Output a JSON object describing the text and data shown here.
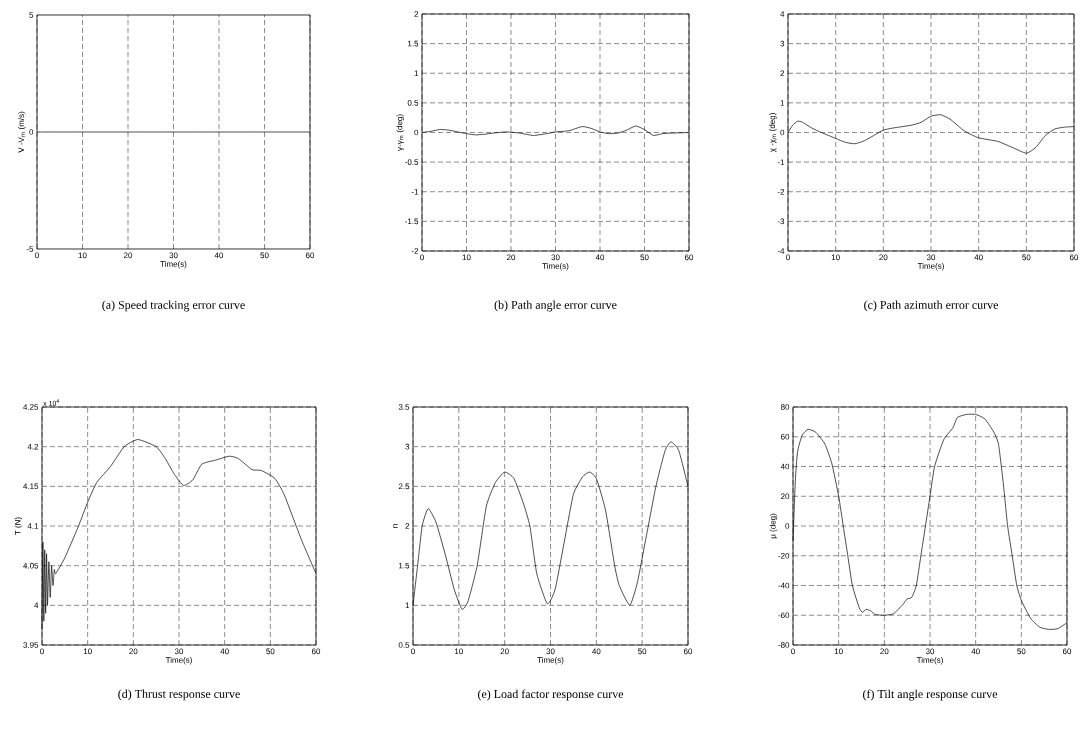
{
  "chart_data": [
    {
      "type": "line",
      "xlabel": "Time(s)",
      "ylabel": "V -V$_{m}$ (m/s)",
      "annotations": [
        "(a) Speed tracking error curve"
      ],
      "xlim": [
        0,
        60
      ],
      "ylim": [
        -5,
        5
      ],
      "xticks": [
        0,
        10,
        20,
        30,
        40,
        50,
        60
      ],
      "yticks": [
        -5,
        0,
        5
      ],
      "grid": "x",
      "color": "#000000",
      "x": [
        0,
        10,
        20,
        30,
        40,
        50,
        60
      ],
      "values": [
        0,
        0,
        0,
        0,
        0,
        0,
        0
      ]
    },
    {
      "type": "line",
      "xlabel": "Time(s)",
      "ylabel": "γ-γ$_{m}$ (deg)",
      "annotations": [
        "(b) Path angle error curve"
      ],
      "xlim": [
        0,
        60
      ],
      "ylim": [
        -2,
        2
      ],
      "xticks": [
        0,
        10,
        20,
        30,
        40,
        50,
        60
      ],
      "yticks": [
        -2,
        -1.5,
        -1,
        -0.5,
        0,
        0.5,
        1,
        1.5,
        2
      ],
      "grid": true,
      "color": "#000000",
      "x": [
        0,
        2,
        4,
        6,
        8,
        10,
        12,
        14,
        16,
        19,
        22,
        25,
        28,
        30,
        33,
        36,
        38,
        40,
        42,
        44,
        46,
        48,
        50,
        52,
        54,
        56,
        60
      ],
      "values": [
        0,
        0.02,
        0.05,
        0.04,
        0.01,
        -0.02,
        -0.04,
        -0.03,
        -0.01,
        0.01,
        -0.01,
        -0.05,
        -0.02,
        0.01,
        0.03,
        0.1,
        0.07,
        0.01,
        -0.02,
        -0.01,
        0.04,
        0.11,
        0.05,
        -0.05,
        -0.02,
        -0.01,
        0
      ]
    },
    {
      "type": "line",
      "xlabel": "Time(s)",
      "ylabel": "χ -χ$_{m}$ (deg)",
      "annotations": [
        "(c) Path azimuth error curve"
      ],
      "xlim": [
        0,
        60
      ],
      "ylim": [
        -4,
        4
      ],
      "xticks": [
        0,
        10,
        20,
        30,
        40,
        50,
        60
      ],
      "yticks": [
        -4,
        -3,
        -2,
        -1,
        0,
        1,
        2,
        3,
        4
      ],
      "grid": true,
      "color": "#000000",
      "x": [
        0,
        1,
        2,
        3,
        5,
        7,
        10,
        12,
        14,
        16,
        18,
        20,
        22,
        26,
        28,
        30,
        32,
        34,
        37,
        40,
        44,
        47,
        50,
        52,
        54,
        56,
        58,
        60
      ],
      "values": [
        0,
        0.25,
        0.38,
        0.35,
        0.15,
        0,
        -0.2,
        -0.33,
        -0.38,
        -0.28,
        -0.1,
        0.08,
        0.15,
        0.25,
        0.35,
        0.55,
        0.6,
        0.45,
        0.05,
        -0.18,
        -0.3,
        -0.5,
        -0.7,
        -0.5,
        -0.1,
        0.12,
        0.18,
        0.2
      ]
    },
    {
      "type": "line",
      "xlabel": "Time(s)",
      "ylabel": "T (N)",
      "annotations": [
        "(d) Thrust response curve",
        "x 10$^{4}$"
      ],
      "xlim": [
        0,
        60
      ],
      "ylim": [
        3.95,
        4.25
      ],
      "xticks": [
        0,
        10,
        20,
        30,
        40,
        50,
        60
      ],
      "yticks": [
        3.95,
        4,
        4.05,
        4.1,
        4.15,
        4.2,
        4.25
      ],
      "grid": true,
      "color": "#000000",
      "x": [
        0,
        0.2,
        0.4,
        0.6,
        0.8,
        1.0,
        1.2,
        1.5,
        1.8,
        2.1,
        2.4,
        2.7,
        3,
        5,
        8,
        10,
        12,
        15,
        18,
        21,
        25,
        27,
        29,
        31,
        33,
        35,
        38,
        41,
        43,
        46,
        48,
        51,
        53,
        55,
        57,
        60
      ],
      "values": [
        3.97,
        4.08,
        3.98,
        4.07,
        3.99,
        4.065,
        4.0,
        4.055,
        4.01,
        4.05,
        4.025,
        4.045,
        4.04,
        4.06,
        4.1,
        4.13,
        4.155,
        4.175,
        4.2,
        4.209,
        4.2,
        4.185,
        4.165,
        4.151,
        4.158,
        4.178,
        4.183,
        4.188,
        4.185,
        4.171,
        4.17,
        4.16,
        4.14,
        4.11,
        4.08,
        4.04
      ]
    },
    {
      "type": "line",
      "xlabel": "Time(s)",
      "ylabel": "n",
      "annotations": [
        "(e) Load factor response curve"
      ],
      "xlim": [
        0,
        60
      ],
      "ylim": [
        0.5,
        3.5
      ],
      "xticks": [
        0,
        10,
        20,
        30,
        40,
        50,
        60
      ],
      "yticks": [
        0.5,
        1,
        1.5,
        2,
        2.5,
        3,
        3.5
      ],
      "grid": true,
      "color": "#000000",
      "x": [
        0,
        1,
        2,
        3.3,
        5,
        7,
        9,
        10.7,
        12,
        14,
        16,
        18,
        20,
        22,
        24,
        25.5,
        27,
        29.3,
        31,
        33,
        35,
        37,
        38.5,
        40,
        42,
        44,
        45,
        47.3,
        49,
        51,
        53,
        55,
        56.3,
        58,
        60
      ],
      "values": [
        1.0,
        1.5,
        2.0,
        2.22,
        2.05,
        1.65,
        1.2,
        0.95,
        1.05,
        1.5,
        2.25,
        2.55,
        2.68,
        2.6,
        2.3,
        2.0,
        1.4,
        1.02,
        1.2,
        1.8,
        2.4,
        2.62,
        2.68,
        2.6,
        2.2,
        1.5,
        1.25,
        1.0,
        1.3,
        1.9,
        2.5,
        2.95,
        3.06,
        2.95,
        2.5
      ]
    },
    {
      "type": "line",
      "xlabel": "Time(s)",
      "ylabel": "μ (deg)",
      "annotations": [
        "(f) Tilt angle response curve"
      ],
      "xlim": [
        0,
        60
      ],
      "ylim": [
        -80,
        80
      ],
      "xticks": [
        0,
        10,
        20,
        30,
        40,
        50,
        60
      ],
      "yticks": [
        -80,
        -60,
        -40,
        -20,
        0,
        20,
        40,
        60,
        80
      ],
      "grid": true,
      "color": "#000000",
      "x": [
        0,
        0.5,
        1,
        2,
        3.3,
        5,
        7,
        8.5,
        10,
        11,
        12,
        13,
        14.5,
        15.2,
        16,
        17,
        18,
        20,
        22,
        24,
        25,
        26,
        27,
        28,
        29,
        30,
        31,
        33,
        35,
        36,
        38,
        40,
        42,
        44,
        45,
        46,
        47,
        48,
        49,
        50,
        52,
        54,
        56,
        58,
        60
      ],
      "values": [
        -10,
        30,
        50,
        61,
        65,
        63,
        55,
        42,
        20,
        0,
        -20,
        -40,
        -55,
        -58,
        -56,
        -57,
        -59.5,
        -60,
        -59,
        -53,
        -49,
        -48,
        -40,
        -20,
        0,
        20,
        40,
        58,
        66,
        73,
        75,
        75,
        72,
        63,
        55,
        30,
        0,
        -20,
        -40,
        -50,
        -62,
        -68,
        -69.5,
        -69,
        -65
      ]
    }
  ]
}
